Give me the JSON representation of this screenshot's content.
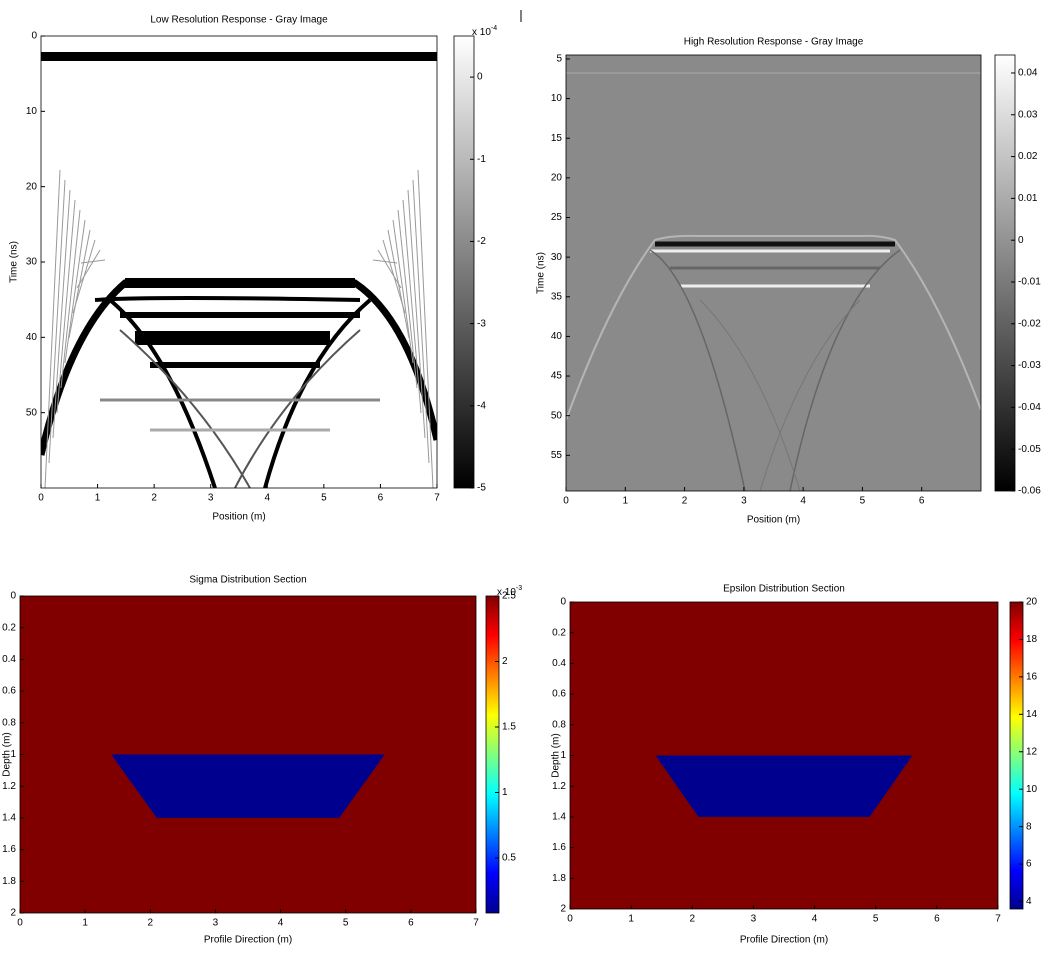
{
  "chart_data": [
    {
      "type": "image",
      "title": "Low Resolution Response - Gray Image",
      "xlabel": "Position (m)",
      "ylabel": "Time (ns)",
      "xlim": [
        0,
        7
      ],
      "xticks": [
        0,
        1,
        2,
        3,
        4,
        5,
        6,
        7
      ],
      "ylim": [
        0,
        60
      ],
      "yticks": [
        0,
        10,
        20,
        30,
        40,
        50
      ],
      "yreverse": true,
      "colormap": "gray",
      "clim": [
        -5,
        0.5
      ],
      "cticks": [
        0,
        -1,
        -2,
        -3,
        -4,
        -5
      ],
      "cscale": {
        "base": "x 10",
        "exponent": "-4"
      }
    },
    {
      "type": "image",
      "title": "High Resolution Response - Gray Image",
      "xlabel": "Position (m)",
      "ylabel": "Time (ns)",
      "xlim": [
        0,
        7
      ],
      "xticks": [
        0,
        1,
        2,
        3,
        4,
        5,
        6
      ],
      "ylim": [
        4.5,
        59.5
      ],
      "yticks": [
        5,
        10,
        15,
        20,
        25,
        30,
        35,
        40,
        45,
        50,
        55
      ],
      "yreverse": true,
      "colormap": "gray",
      "clim": [
        -0.06,
        0.0443
      ],
      "cticks": [
        0.04,
        0.03,
        0.02,
        0.01,
        0,
        -0.01,
        -0.02,
        -0.03,
        -0.04,
        -0.05,
        -0.06
      ]
    },
    {
      "type": "section",
      "title": "Sigma Distribution Section",
      "xlabel": "Profile Direction (m)",
      "ylabel": "Depth (m)",
      "xlim": [
        0,
        7
      ],
      "xticks": [
        0,
        1,
        2,
        3,
        4,
        5,
        6,
        7
      ],
      "ylim": [
        0,
        2
      ],
      "yticks": [
        0,
        0.2,
        0.4,
        0.6,
        0.8,
        1,
        1.2,
        1.4,
        1.6,
        1.8,
        2
      ],
      "yreverse": true,
      "colormap": "jet",
      "clim": [
        0.08,
        2.5
      ],
      "cticks": [
        2.5,
        2,
        1.5,
        1,
        0.5
      ],
      "cscale": {
        "base": "x 10",
        "exponent": "-3"
      },
      "background_color": "#800000",
      "anomaly_color": "#00008f",
      "anomaly": {
        "x": [
          1.4,
          5.6,
          4.9,
          2.1
        ],
        "y": [
          1.0,
          1.0,
          1.4,
          1.4
        ]
      }
    },
    {
      "type": "section",
      "title": "Epsilon Distribution Section",
      "xlabel": "Profile Direction (m)",
      "ylabel": "Depth (m)",
      "xlim": [
        0,
        7
      ],
      "xticks": [
        0,
        1,
        2,
        3,
        4,
        5,
        6,
        7
      ],
      "ylim": [
        0,
        2
      ],
      "yticks": [
        0,
        0.2,
        0.4,
        0.6,
        0.8,
        1,
        1.2,
        1.4,
        1.6,
        1.8,
        2
      ],
      "yreverse": true,
      "colormap": "jet",
      "clim": [
        3.6,
        20
      ],
      "cticks": [
        20,
        18,
        16,
        14,
        12,
        10,
        8,
        6,
        4
      ],
      "background_color": "#800000",
      "anomaly_color": "#00008f",
      "anomaly": {
        "x": [
          1.4,
          5.6,
          4.9,
          2.1
        ],
        "y": [
          1.0,
          1.0,
          1.4,
          1.4
        ]
      }
    }
  ]
}
